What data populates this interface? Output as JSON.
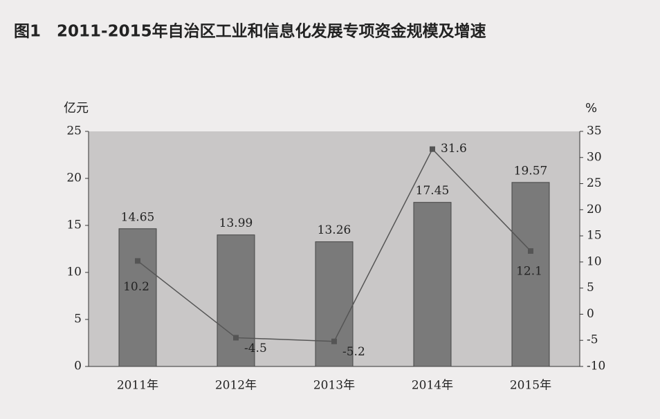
{
  "chart_data": {
    "type": "bar",
    "title": "图1　2011-2015年自治区工业和信息化发展专项资金规模及增速",
    "y_label": "亿元",
    "y2_label": "%",
    "categories": [
      "2011年",
      "2012年",
      "2013年",
      "2014年",
      "2015年"
    ],
    "series": [
      {
        "type": "bar",
        "color": "#7a7a7a",
        "values": [
          14.65,
          13.99,
          13.26,
          17.45,
          19.57
        ]
      },
      {
        "type": "line",
        "axis": "y2",
        "color": "#555555",
        "values": [
          10.2,
          -4.5,
          -5.2,
          31.6,
          12.1
        ]
      }
    ],
    "ylim": [
      0,
      25
    ],
    "yticks": [
      0,
      5,
      10,
      15,
      20,
      25
    ],
    "y2lim": [
      -10,
      35
    ],
    "y2ticks": [
      -10,
      -5,
      0,
      5,
      10,
      15,
      20,
      25,
      30,
      35
    ]
  }
}
